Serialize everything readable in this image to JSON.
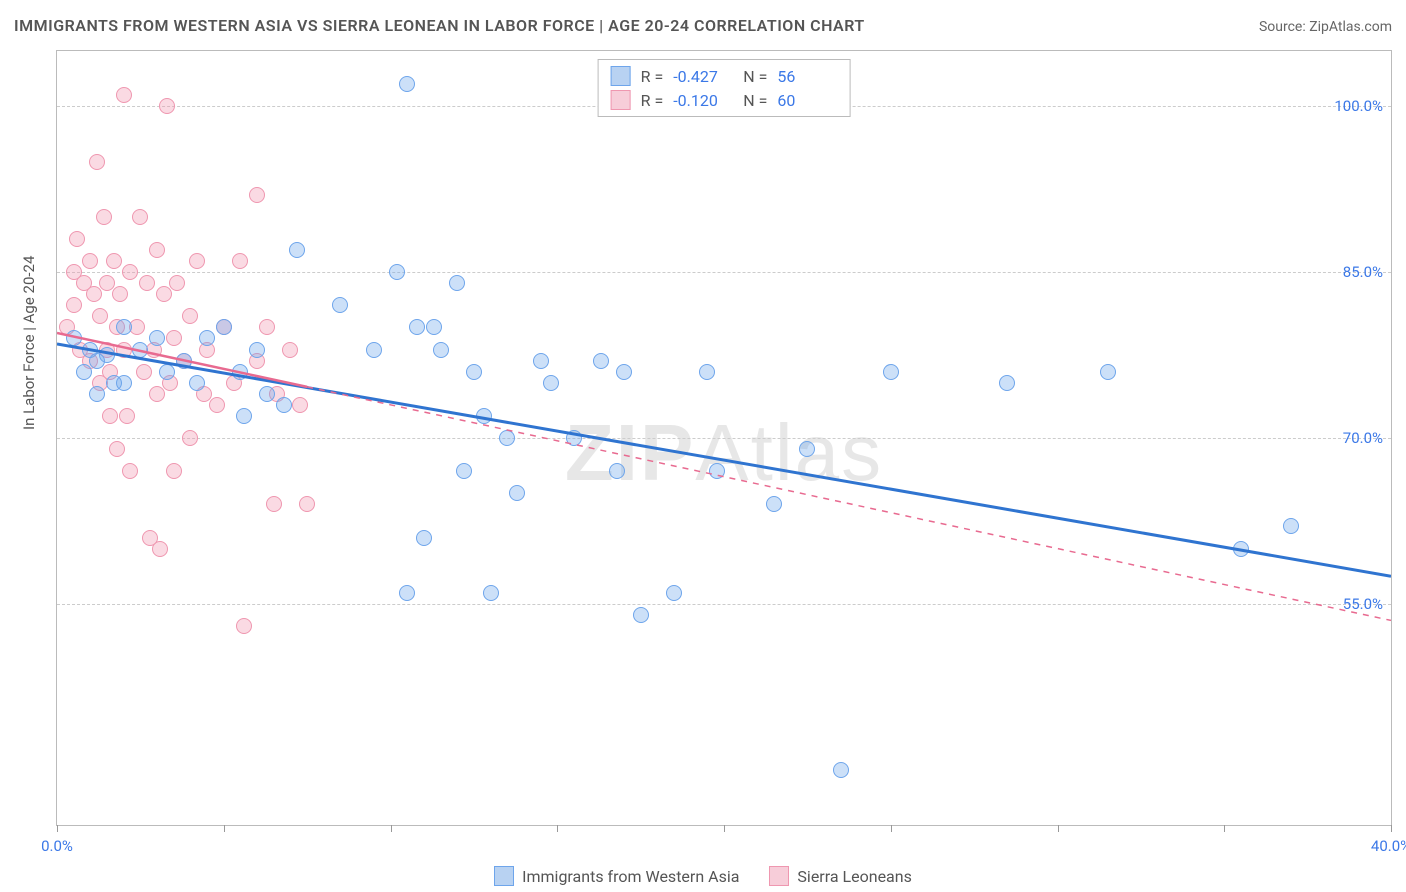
{
  "title": "IMMIGRANTS FROM WESTERN ASIA VS SIERRA LEONEAN IN LABOR FORCE | AGE 20-24 CORRELATION CHART",
  "source": "Source: ZipAtlas.com",
  "watermark_a": "ZIP",
  "watermark_b": "Atlas",
  "y_axis_title": "In Labor Force | Age 20-24",
  "chart": {
    "type": "scatter",
    "background_color": "#ffffff",
    "frame_border_color": "#bbbbbb",
    "grid_color": "#cccccc",
    "xlim": [
      0,
      40
    ],
    "ylim": [
      35,
      105
    ],
    "x_ticks": [
      0,
      5,
      10,
      15,
      20,
      25,
      30,
      35,
      40
    ],
    "x_tick_labels": {
      "0": "0.0%",
      "40": "40.0%"
    },
    "y_ticks": [
      55,
      70,
      85,
      100
    ],
    "y_tick_labels": {
      "55": "55.0%",
      "70": "70.0%",
      "85": "85.0%",
      "100": "100.0%"
    },
    "tick_label_color": "#3b78e7",
    "tick_fontsize": 15,
    "point_radius": 8,
    "series": [
      {
        "name": "Immigrants from Western Asia",
        "fill_color": "rgba(110,165,235,0.35)",
        "stroke_color": "#6ea5eb",
        "swatch_fill": "#b8d2f2",
        "swatch_border": "#6ea5eb",
        "R": "-0.427",
        "N": "56",
        "trend": {
          "x1": 0,
          "y1": 78.5,
          "x2": 40,
          "y2": 57.5,
          "solid_until_x": 40,
          "color": "#2f74d0",
          "width": 3
        },
        "points": [
          [
            0.5,
            79
          ],
          [
            0.8,
            76
          ],
          [
            1.0,
            78
          ],
          [
            1.2,
            77
          ],
          [
            1.5,
            77.5
          ],
          [
            1.2,
            74
          ],
          [
            1.7,
            75
          ],
          [
            2.0,
            75
          ],
          [
            2.5,
            78
          ],
          [
            2.0,
            80
          ],
          [
            3.0,
            79
          ],
          [
            3.3,
            76
          ],
          [
            3.8,
            77
          ],
          [
            4.5,
            79
          ],
          [
            5.0,
            80
          ],
          [
            4.2,
            75
          ],
          [
            5.5,
            76
          ],
          [
            6.0,
            78
          ],
          [
            5.6,
            72
          ],
          [
            6.3,
            74
          ],
          [
            6.8,
            73
          ],
          [
            7.2,
            87
          ],
          [
            8.5,
            82
          ],
          [
            9.5,
            78
          ],
          [
            10.5,
            102
          ],
          [
            10.2,
            85
          ],
          [
            10.8,
            80
          ],
          [
            11.3,
            80
          ],
          [
            11.5,
            78
          ],
          [
            12.0,
            84
          ],
          [
            12.5,
            76
          ],
          [
            12.8,
            72
          ],
          [
            12.2,
            67
          ],
          [
            11.0,
            61
          ],
          [
            10.5,
            56
          ],
          [
            13.0,
            56
          ],
          [
            13.8,
            65
          ],
          [
            13.5,
            70
          ],
          [
            14.5,
            77
          ],
          [
            14.8,
            75
          ],
          [
            15.5,
            70
          ],
          [
            16.3,
            77
          ],
          [
            16.8,
            67
          ],
          [
            17.0,
            76
          ],
          [
            17.5,
            54
          ],
          [
            18.5,
            56
          ],
          [
            19.5,
            76
          ],
          [
            19.8,
            67
          ],
          [
            21.5,
            64
          ],
          [
            22.5,
            69
          ],
          [
            23.5,
            40
          ],
          [
            25.0,
            76
          ],
          [
            28.5,
            75
          ],
          [
            31.5,
            76
          ],
          [
            35.5,
            60
          ],
          [
            37.0,
            62
          ]
        ]
      },
      {
        "name": "Sierra Leoneans",
        "fill_color": "rgba(240,150,175,0.35)",
        "stroke_color": "#ef97b0",
        "swatch_fill": "#f7cdd9",
        "swatch_border": "#ef97b0",
        "R": "-0.120",
        "N": "60",
        "trend": {
          "x1": 0,
          "y1": 79.5,
          "x2": 40,
          "y2": 53.5,
          "solid_until_x": 7.5,
          "color": "#e86a90",
          "width": 2.5
        },
        "points": [
          [
            0.3,
            80
          ],
          [
            0.5,
            82
          ],
          [
            0.5,
            85
          ],
          [
            0.6,
            88
          ],
          [
            0.7,
            78
          ],
          [
            0.8,
            84
          ],
          [
            1.0,
            86
          ],
          [
            1.0,
            77
          ],
          [
            1.1,
            83
          ],
          [
            1.2,
            95
          ],
          [
            1.3,
            75
          ],
          [
            1.3,
            81
          ],
          [
            1.4,
            90
          ],
          [
            1.5,
            84
          ],
          [
            1.5,
            78
          ],
          [
            1.6,
            72
          ],
          [
            1.6,
            76
          ],
          [
            1.7,
            86
          ],
          [
            1.8,
            80
          ],
          [
            1.8,
            69
          ],
          [
            1.9,
            83
          ],
          [
            2.0,
            101
          ],
          [
            2.0,
            78
          ],
          [
            2.1,
            72
          ],
          [
            2.2,
            85
          ],
          [
            2.2,
            67
          ],
          [
            2.4,
            80
          ],
          [
            2.5,
            90
          ],
          [
            2.6,
            76
          ],
          [
            2.7,
            84
          ],
          [
            2.8,
            61
          ],
          [
            2.9,
            78
          ],
          [
            3.0,
            74
          ],
          [
            3.0,
            87
          ],
          [
            3.2,
            83
          ],
          [
            3.3,
            100
          ],
          [
            3.4,
            75
          ],
          [
            3.5,
            79
          ],
          [
            3.5,
            67
          ],
          [
            3.6,
            84
          ],
          [
            3.8,
            77
          ],
          [
            4.0,
            81
          ],
          [
            4.0,
            70
          ],
          [
            4.2,
            86
          ],
          [
            4.4,
            74
          ],
          [
            4.5,
            78
          ],
          [
            4.8,
            73
          ],
          [
            5.0,
            80
          ],
          [
            5.3,
            75
          ],
          [
            5.5,
            86
          ],
          [
            5.6,
            53
          ],
          [
            6.0,
            92
          ],
          [
            6.0,
            77
          ],
          [
            6.3,
            80
          ],
          [
            6.6,
            74
          ],
          [
            6.5,
            64
          ],
          [
            7.0,
            78
          ],
          [
            7.3,
            73
          ],
          [
            7.5,
            64
          ],
          [
            3.1,
            60
          ]
        ]
      }
    ]
  },
  "bottom_legend": [
    "Immigrants from Western Asia",
    "Sierra Leoneans"
  ]
}
